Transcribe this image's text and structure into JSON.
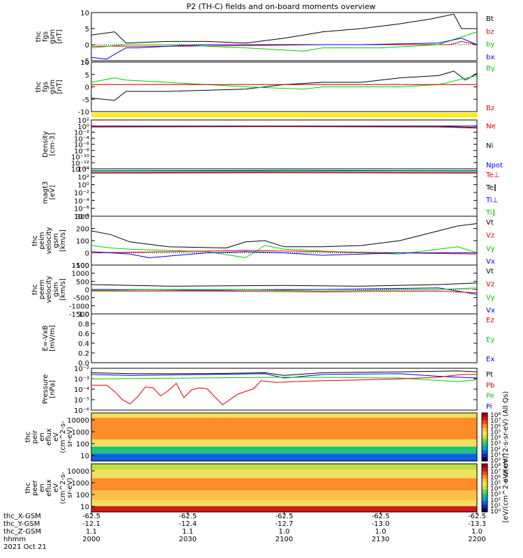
{
  "title": "P2 (TH-C) fields and on-board moments overview",
  "chart_data": {
    "type": "line",
    "x_time_range": [
      "2000",
      "2200"
    ],
    "panels": [
      {
        "id": "fgs-gsm",
        "ylabel": [
          "thc",
          "fgs",
          "gsm",
          "[nT]"
        ],
        "ylim": [
          -5,
          10
        ],
        "yticks": [
          "10",
          "5",
          "0",
          "-5"
        ],
        "legend": [
          {
            "text": "Bt",
            "color": "#000000"
          },
          {
            "text": "bz",
            "color": "#e00000"
          },
          {
            "text": "by",
            "color": "#00cc00"
          },
          {
            "text": "bx",
            "color": "#0000dd"
          }
        ],
        "series": [
          {
            "color": "#000000",
            "x": [
              0,
              0.06,
              0.09,
              0.2,
              0.3,
              0.4,
              0.5,
              0.55,
              0.6,
              0.7,
              0.8,
              0.88,
              0.94,
              0.96,
              1.0
            ],
            "values": [
              3,
              4,
              0.5,
              1,
              1,
              0.5,
              2,
              3,
              4,
              5,
              6.5,
              8,
              9.5,
              5,
              5
            ]
          },
          {
            "color": "#e00000",
            "x": [
              0,
              0.2,
              0.4,
              0.6,
              0.8,
              0.93,
              0.96,
              1.0
            ],
            "values": [
              -0.5,
              -0.5,
              -0.3,
              0,
              0,
              0,
              1,
              0
            ]
          },
          {
            "color": "#00cc00",
            "x": [
              0,
              0.09,
              0.2,
              0.4,
              0.55,
              0.6,
              0.75,
              0.9,
              1.0
            ],
            "values": [
              -1,
              0,
              0,
              -1,
              -2,
              -1,
              -1,
              0,
              4
            ]
          },
          {
            "color": "#0000dd",
            "x": [
              0,
              0.04,
              0.06,
              0.09,
              0.12,
              0.2,
              0.3,
              0.5,
              0.7,
              0.9,
              0.96,
              1.0
            ],
            "values": [
              -4,
              -4.5,
              -3,
              -1,
              -1,
              -0.5,
              0,
              0,
              0,
              0.5,
              2,
              0
            ]
          }
        ]
      },
      {
        "id": "fgs-gse",
        "ylabel": [
          "thc",
          "fgs",
          "gsm",
          "[nT]"
        ],
        "ylim": [
          -12,
          10
        ],
        "yticks": [
          "10",
          "5",
          "0",
          "-5",
          "-10"
        ],
        "legend": [
          {
            "text": "By",
            "color": "#00cc00"
          },
          {
            "text": "Bz",
            "color": "#e00000"
          }
        ],
        "series": [
          {
            "color": "#000000",
            "x": [
              0,
              0.06,
              0.09,
              0.2,
              0.4,
              0.5,
              0.6,
              0.7,
              0.8,
              0.9,
              0.94,
              0.97,
              1.0
            ],
            "values": [
              -6,
              -7,
              -3,
              -3,
              -2,
              0,
              1,
              1,
              3,
              4,
              6,
              2,
              5
            ]
          },
          {
            "color": "#00cc00",
            "x": [
              0,
              0.06,
              0.09,
              0.3,
              0.4,
              0.55,
              0.6,
              0.8,
              0.9,
              1.0
            ],
            "values": [
              1,
              3,
              2,
              0,
              -1,
              -2,
              -1,
              -1,
              0,
              4
            ]
          },
          {
            "color": "#e00000",
            "x": [
              0,
              0.3,
              0.6,
              0.9,
              1.0
            ],
            "values": [
              0,
              0,
              0,
              0,
              0
            ]
          }
        ]
      },
      {
        "id": "density",
        "ylabel": [
          "Density",
          "[cm-3]"
        ],
        "yscale": "log",
        "ylim": [
          -14,
          2
        ],
        "yticks": [
          "10²",
          "10⁰",
          "10⁻²",
          "10⁻⁴",
          "10⁻⁶",
          "10⁻⁸",
          "10⁻¹⁰",
          "10⁻¹²",
          "10⁻¹⁴"
        ],
        "legend": [
          {
            "text": "Ne",
            "color": "#e00000"
          },
          {
            "text": "Ni",
            "color": "#000000"
          },
          {
            "text": "Npot",
            "color": "#0000dd"
          }
        ],
        "series": [
          {
            "color": "#000000",
            "x": [
              0,
              0.5,
              0.9,
              1.0
            ],
            "values": [
              0,
              0,
              0,
              0
            ]
          },
          {
            "color": "#0000dd",
            "x": [
              0,
              0.5,
              0.9,
              1.0
            ],
            "values": [
              -0.1,
              -0.1,
              -0.1,
              -0.5
            ]
          },
          {
            "color": "#e00000",
            "x": [
              0,
              0.5,
              0.9,
              1.0
            ],
            "values": [
              -0.3,
              -0.2,
              -0.3,
              -0.7
            ]
          }
        ]
      },
      {
        "id": "temperature",
        "ylabel": [
          "magt3",
          "[eV]"
        ],
        "yscale": "log",
        "ylim": [
          -8,
          4
        ],
        "yticks": [
          "10⁴",
          "10²",
          "10⁰",
          "10⁻²",
          "10⁻⁴",
          "10⁻⁶",
          "10⁻⁸"
        ],
        "legend": [
          {
            "text": "Te⊥",
            "color": "#e00000"
          },
          {
            "text": "Te∥",
            "color": "#000000"
          },
          {
            "text": "Ti⊥",
            "color": "#0000dd"
          },
          {
            "text": "Ti∥",
            "color": "#00cc00"
          }
        ],
        "series": [
          {
            "color": "#0000dd",
            "x": [
              0,
              0.5,
              1.0
            ],
            "values": [
              3.5,
              3.6,
              3.5
            ]
          },
          {
            "color": "#00cc00",
            "x": [
              0,
              0.5,
              1.0
            ],
            "values": [
              3.3,
              3.4,
              3.3
            ]
          },
          {
            "color": "#000000",
            "x": [
              0,
              0.5,
              1.0
            ],
            "values": [
              3.0,
              3.1,
              3.0
            ]
          },
          {
            "color": "#e00000",
            "x": [
              0,
              0.5,
              1.0
            ],
            "values": [
              2.9,
              3.0,
              2.9
            ]
          }
        ]
      },
      {
        "id": "ion-velocity",
        "ylabel": [
          "thc",
          "peim",
          "velocity",
          "gsm",
          "[km/s]"
        ],
        "ylim": [
          -100,
          300
        ],
        "yticks": [
          "300",
          "200",
          "100",
          "0",
          "-100"
        ],
        "legend": [
          {
            "text": "Vt",
            "color": "#000000"
          },
          {
            "text": "Vz",
            "color": "#e00000"
          },
          {
            "text": "Vy",
            "color": "#00cc00"
          },
          {
            "text": "Vx",
            "color": "#0000dd"
          }
        ],
        "series": [
          {
            "color": "#000000",
            "x": [
              0,
              0.05,
              0.1,
              0.2,
              0.35,
              0.4,
              0.45,
              0.5,
              0.6,
              0.7,
              0.8,
              0.9,
              0.95,
              1.0
            ],
            "values": [
              180,
              150,
              90,
              50,
              40,
              90,
              100,
              50,
              50,
              60,
              100,
              180,
              220,
              240
            ]
          },
          {
            "color": "#00cc00",
            "x": [
              0,
              0.05,
              0.1,
              0.3,
              0.4,
              0.45,
              0.5,
              0.7,
              0.8,
              0.95,
              1.0
            ],
            "values": [
              60,
              40,
              30,
              10,
              -40,
              60,
              30,
              0,
              -10,
              50,
              0
            ]
          },
          {
            "color": "#e00000",
            "x": [
              0,
              0.2,
              0.4,
              0.6,
              0.8,
              1.0
            ],
            "values": [
              0,
              10,
              20,
              10,
              0,
              -10
            ]
          },
          {
            "color": "#0000dd",
            "x": [
              0,
              0.1,
              0.15,
              0.3,
              0.4,
              0.5,
              0.6,
              0.8,
              1.0
            ],
            "values": [
              10,
              -10,
              -40,
              0,
              10,
              0,
              -20,
              0,
              0
            ]
          }
        ]
      },
      {
        "id": "electron-velocity",
        "ylabel": [
          "thc",
          "peem",
          "velocity",
          "gsm",
          "[km/s]"
        ],
        "ylim": [
          -1500,
          1500
        ],
        "yticks": [
          "1500",
          "1000",
          "500",
          "0",
          "-500",
          "-1000",
          "-1500"
        ],
        "legend": [
          {
            "text": "Vt",
            "color": "#000000"
          },
          {
            "text": "Vz",
            "color": "#e00000"
          },
          {
            "text": "Vy",
            "color": "#00cc00"
          },
          {
            "text": "Vx",
            "color": "#0000dd"
          }
        ],
        "series": [
          {
            "color": "#000000",
            "x": [
              0,
              0.2,
              0.5,
              0.7,
              0.9,
              1.0
            ],
            "values": [
              300,
              200,
              250,
              200,
              300,
              400
            ]
          },
          {
            "color": "#0000dd",
            "x": [
              0,
              0.3,
              0.6,
              0.9,
              1.0
            ],
            "values": [
              0,
              -50,
              0,
              100,
              -300
            ]
          },
          {
            "color": "#00cc00",
            "x": [
              0,
              0.3,
              0.6,
              0.9,
              1.0
            ],
            "values": [
              -50,
              0,
              -100,
              0,
              100
            ]
          },
          {
            "color": "#e00000",
            "x": [
              0,
              0.3,
              0.6,
              0.9,
              1.0
            ],
            "values": [
              -100,
              -100,
              -150,
              -100,
              -200
            ]
          }
        ]
      },
      {
        "id": "efield",
        "ylabel": [
          "E=-VxB",
          "[mV/m]"
        ],
        "ylim": [
          0,
          1.0
        ],
        "yticks": [
          "1.0",
          "0.8",
          "0.6",
          "0.4",
          "0.2",
          "0.0"
        ],
        "legend": [
          {
            "text": "Ez",
            "color": "#e00000"
          },
          {
            "text": "Ey",
            "color": "#00cc00"
          },
          {
            "text": "Ex",
            "color": "#0000dd"
          }
        ],
        "series": []
      },
      {
        "id": "pressure",
        "ylabel": [
          "Pressure",
          "[nPa]"
        ],
        "yscale": "log",
        "ylim": [
          -6,
          -1.3
        ],
        "yticks": [
          "10⁻²",
          "10⁻³",
          "10⁻⁴",
          "10⁻⁵",
          "10⁻⁶"
        ],
        "legend": [
          {
            "text": "Pt",
            "color": "#000000"
          },
          {
            "text": "Pb",
            "color": "#e00000"
          },
          {
            "text": "Pe",
            "color": "#00cc00"
          },
          {
            "text": "Pi",
            "color": "#0000dd"
          }
        ],
        "series": [
          {
            "color": "#000000",
            "x": [
              0,
              0.1,
              0.3,
              0.45,
              0.5,
              0.6,
              0.8,
              0.95,
              1.0
            ],
            "values": [
              -1.8,
              -1.9,
              -1.9,
              -1.8,
              -2.1,
              -1.8,
              -1.7,
              -1.6,
              -1.7
            ]
          },
          {
            "color": "#0000dd",
            "x": [
              0,
              0.1,
              0.3,
              0.45,
              0.5,
              0.6,
              0.8,
              0.9,
              1.0
            ],
            "values": [
              -2.0,
              -2.1,
              -2.0,
              -1.9,
              -2.4,
              -2.0,
              -1.9,
              -2.2,
              -2.4
            ]
          },
          {
            "color": "#00cc00",
            "x": [
              0,
              0.5,
              0.8,
              0.95,
              1.0
            ],
            "values": [
              -2.5,
              -2.3,
              -2.4,
              -2.8,
              -2.6
            ]
          },
          {
            "color": "#e00000",
            "x": [
              0,
              0.04,
              0.06,
              0.08,
              0.1,
              0.12,
              0.14,
              0.16,
              0.18,
              0.2,
              0.22,
              0.24,
              0.26,
              0.28,
              0.3,
              0.34,
              0.38,
              0.42,
              0.44,
              0.48,
              0.52,
              0.6,
              0.7,
              0.8,
              0.9,
              0.96,
              1.0
            ],
            "values": [
              -3.2,
              -3.2,
              -3.9,
              -4.8,
              -5.3,
              -4.5,
              -3.4,
              -3.5,
              -4.4,
              -3.8,
              -3.0,
              -4.6,
              -3.7,
              -3.5,
              -3.6,
              -5.4,
              -4.2,
              -3.6,
              -2.7,
              -2.9,
              -2.8,
              -2.7,
              -2.6,
              -2.5,
              -2.3,
              -2.0,
              -2.0
            ]
          }
        ]
      }
    ],
    "spectrograms": [
      {
        "id": "ion-energy-flux",
        "ylabel": [
          "thc",
          "peir",
          "en",
          "eflux",
          "eV",
          "(cm^2-s-",
          "sr-eV)"
        ],
        "yscale": "log",
        "ylim": [
          5,
          15000
        ],
        "yticks": [
          "10000",
          "1000",
          "100",
          "10"
        ],
        "colorbar_ticks": [
          "10⁸",
          "10⁷",
          "10⁶",
          "10⁵",
          "10⁴",
          "10³",
          "10²",
          "10¹",
          "10⁰"
        ],
        "colorbar_label": "eV/(cm^2-s-sr-eV) (All Qs)"
      },
      {
        "id": "electron-energy-flux",
        "ylabel": [
          "thc",
          "peer",
          "en",
          "eflux",
          "eV",
          "(cm^2-s-",
          "sr-eV)"
        ],
        "yscale": "log",
        "ylim": [
          5,
          15000
        ],
        "yticks": [
          "10000",
          "1000",
          "100",
          "10"
        ],
        "colorbar_ticks": [
          "10⁸",
          "10⁷",
          "10⁶",
          "10⁵",
          "10⁴",
          "10³",
          "10²",
          "10¹",
          "10⁰"
        ],
        "colorbar_label": "[eV/(cm^2-s-sr-eV)]"
      }
    ],
    "x_axis": {
      "row_labels": [
        "thc_X-GSM",
        "thc_Y-GSM",
        "thc_Z-GSM",
        "hhmm",
        "2021 Oct 21"
      ],
      "columns": [
        [
          "-62.5",
          "-12.1",
          "1.1",
          "2000"
        ],
        [
          "-62.5",
          "-12.4",
          "1.1",
          "2030"
        ],
        [
          "-62.5",
          "-12.7",
          "1.0",
          "2100"
        ],
        [
          "-62.5",
          "-13.0",
          "1.0",
          "2130"
        ],
        [
          "-62.5",
          "-13.3",
          "1.0",
          "2200"
        ]
      ]
    }
  }
}
